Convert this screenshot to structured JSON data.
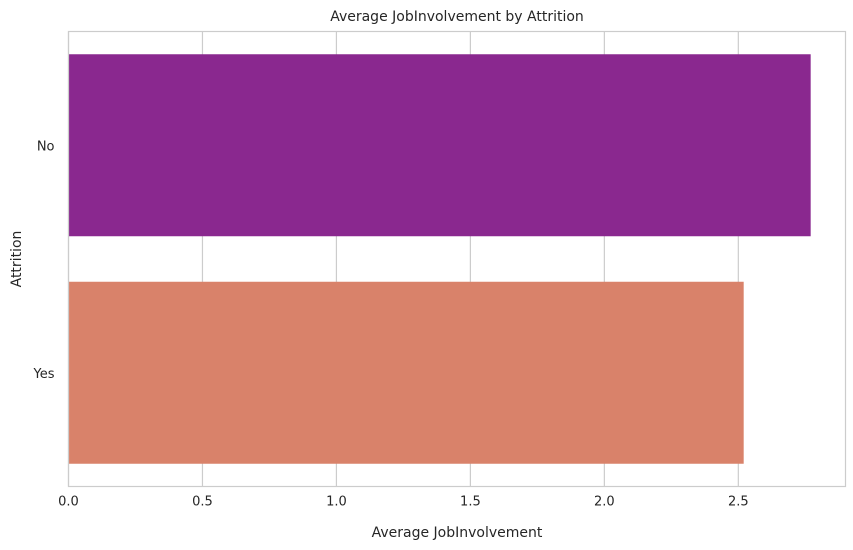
{
  "chart_data": {
    "type": "bar",
    "orientation": "horizontal",
    "title": "Average JobInvolvement by Attrition",
    "xlabel": "Average JobInvolvement",
    "ylabel": "Attrition",
    "categories": [
      "No",
      "Yes"
    ],
    "values": [
      2.77,
      2.52
    ],
    "colors": [
      "#8a288f",
      "#d9826a"
    ],
    "xlim": [
      0,
      2.9
    ],
    "xticks": [
      "0.0",
      "0.5",
      "1.0",
      "1.5",
      "2.0",
      "2.5"
    ],
    "xtick_values": [
      0,
      0.5,
      1.0,
      1.5,
      2.0,
      2.5
    ],
    "grid": "vertical",
    "legend": "none"
  }
}
